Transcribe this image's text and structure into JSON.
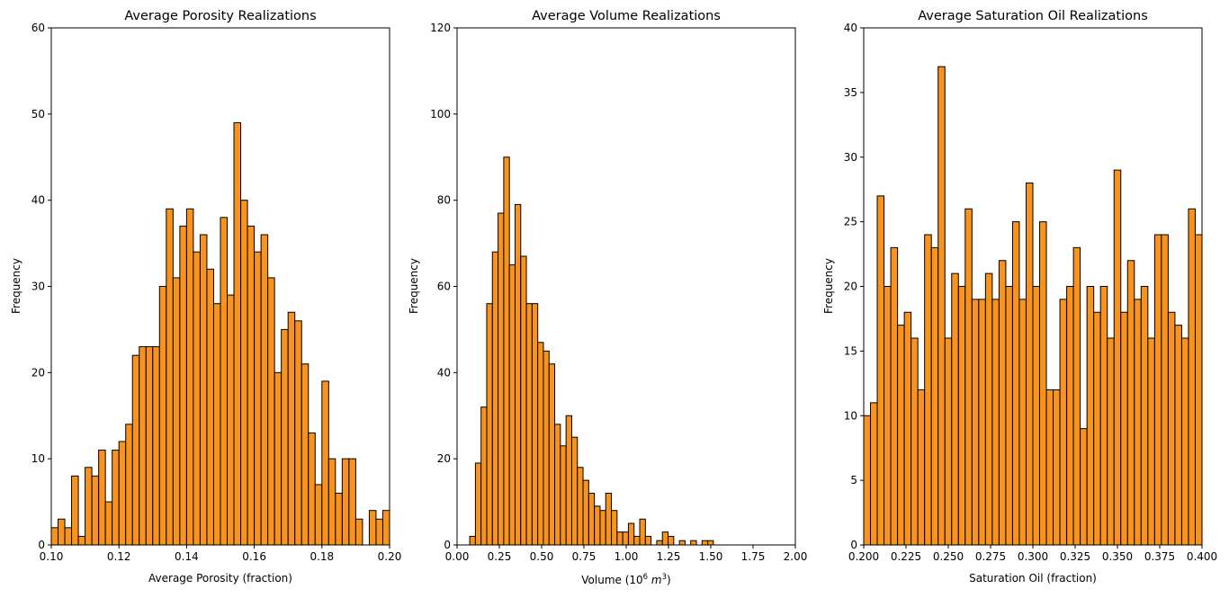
{
  "figure": {
    "background": "#ffffff"
  },
  "style": {
    "bar_fill": "#f7931e",
    "bar_edge": "#000000"
  },
  "chart_data": [
    {
      "type": "bar",
      "title": "Average Porosity Realizations",
      "xlabel": "Average Porosity (fraction)",
      "ylabel": "Frequency",
      "xlim": [
        0.1,
        0.2
      ],
      "ylim": [
        0,
        60
      ],
      "xticks": [
        0.1,
        0.12,
        0.14,
        0.16,
        0.18,
        0.2
      ],
      "xtick_labels": [
        "0.10",
        "0.12",
        "0.14",
        "0.16",
        "0.18",
        "0.20"
      ],
      "yticks": [
        0,
        10,
        20,
        30,
        40,
        50,
        60
      ],
      "ytick_labels": [
        "0",
        "10",
        "20",
        "30",
        "40",
        "50",
        "60"
      ],
      "bin_start": 0.1,
      "bin_width": 0.002,
      "values": [
        2,
        3,
        2,
        8,
        1,
        9,
        8,
        11,
        5,
        11,
        12,
        14,
        22,
        23,
        23,
        23,
        30,
        39,
        31,
        37,
        39,
        34,
        36,
        32,
        28,
        38,
        29,
        49,
        40,
        37,
        34,
        36,
        31,
        20,
        25,
        27,
        26,
        21,
        13,
        7,
        19,
        10,
        6,
        10,
        10,
        3,
        0,
        4,
        3,
        4
      ]
    },
    {
      "type": "bar",
      "title": "Average Volume Realizations",
      "xlabel": "Volume (10",
      "xlabel_sup1": "6",
      "xlabel_mid": " m",
      "xlabel_sup2": "3",
      "xlabel_end": ")",
      "ylabel": "Frequency",
      "xlim": [
        0,
        2
      ],
      "ylim": [
        0,
        120
      ],
      "xticks": [
        0,
        0.25,
        0.5,
        0.75,
        1.0,
        1.25,
        1.5,
        1.75,
        2.0
      ],
      "xtick_labels": [
        "0.00",
        "0.25",
        "0.50",
        "0.75",
        "1.00",
        "1.25",
        "1.50",
        "1.75",
        "2.00"
      ],
      "yticks": [
        0,
        20,
        40,
        60,
        80,
        100,
        120
      ],
      "ytick_labels": [
        "0",
        "20",
        "40",
        "60",
        "80",
        "100",
        "120"
      ],
      "bin_start": 0.075,
      "bin_width": 0.0335,
      "values": [
        2,
        19,
        32,
        56,
        68,
        77,
        90,
        65,
        79,
        67,
        56,
        56,
        47,
        45,
        42,
        28,
        23,
        30,
        25,
        18,
        15,
        12,
        9,
        8,
        12,
        8,
        3,
        3,
        5,
        2,
        6,
        2,
        0,
        1,
        3,
        2,
        0,
        1,
        0,
        1,
        0,
        1,
        1
      ]
    },
    {
      "type": "bar",
      "title": "Average Saturation Oil Realizations",
      "xlabel": "Saturation Oil (fraction)",
      "ylabel": "Frequency",
      "xlim": [
        0.2,
        0.4
      ],
      "ylim": [
        0,
        40
      ],
      "xticks": [
        0.2,
        0.225,
        0.25,
        0.275,
        0.3,
        0.325,
        0.35,
        0.375,
        0.4
      ],
      "xtick_labels": [
        "0.200",
        "0.225",
        "0.250",
        "0.275",
        "0.300",
        "0.325",
        "0.350",
        "0.375",
        "0.400"
      ],
      "yticks": [
        0,
        5,
        10,
        15,
        20,
        25,
        30,
        35,
        40
      ],
      "ytick_labels": [
        "0",
        "5",
        "10",
        "15",
        "20",
        "25",
        "30",
        "35",
        "40"
      ],
      "bin_start": 0.2,
      "bin_width": 0.004,
      "values": [
        10,
        11,
        27,
        20,
        23,
        17,
        18,
        16,
        12,
        24,
        23,
        37,
        16,
        21,
        20,
        26,
        19,
        19,
        21,
        19,
        22,
        20,
        25,
        19,
        28,
        20,
        25,
        12,
        12,
        19,
        20,
        23,
        9,
        20,
        18,
        20,
        16,
        29,
        18,
        22,
        19,
        20,
        16,
        24,
        24,
        18,
        17,
        16,
        26,
        24
      ]
    }
  ]
}
